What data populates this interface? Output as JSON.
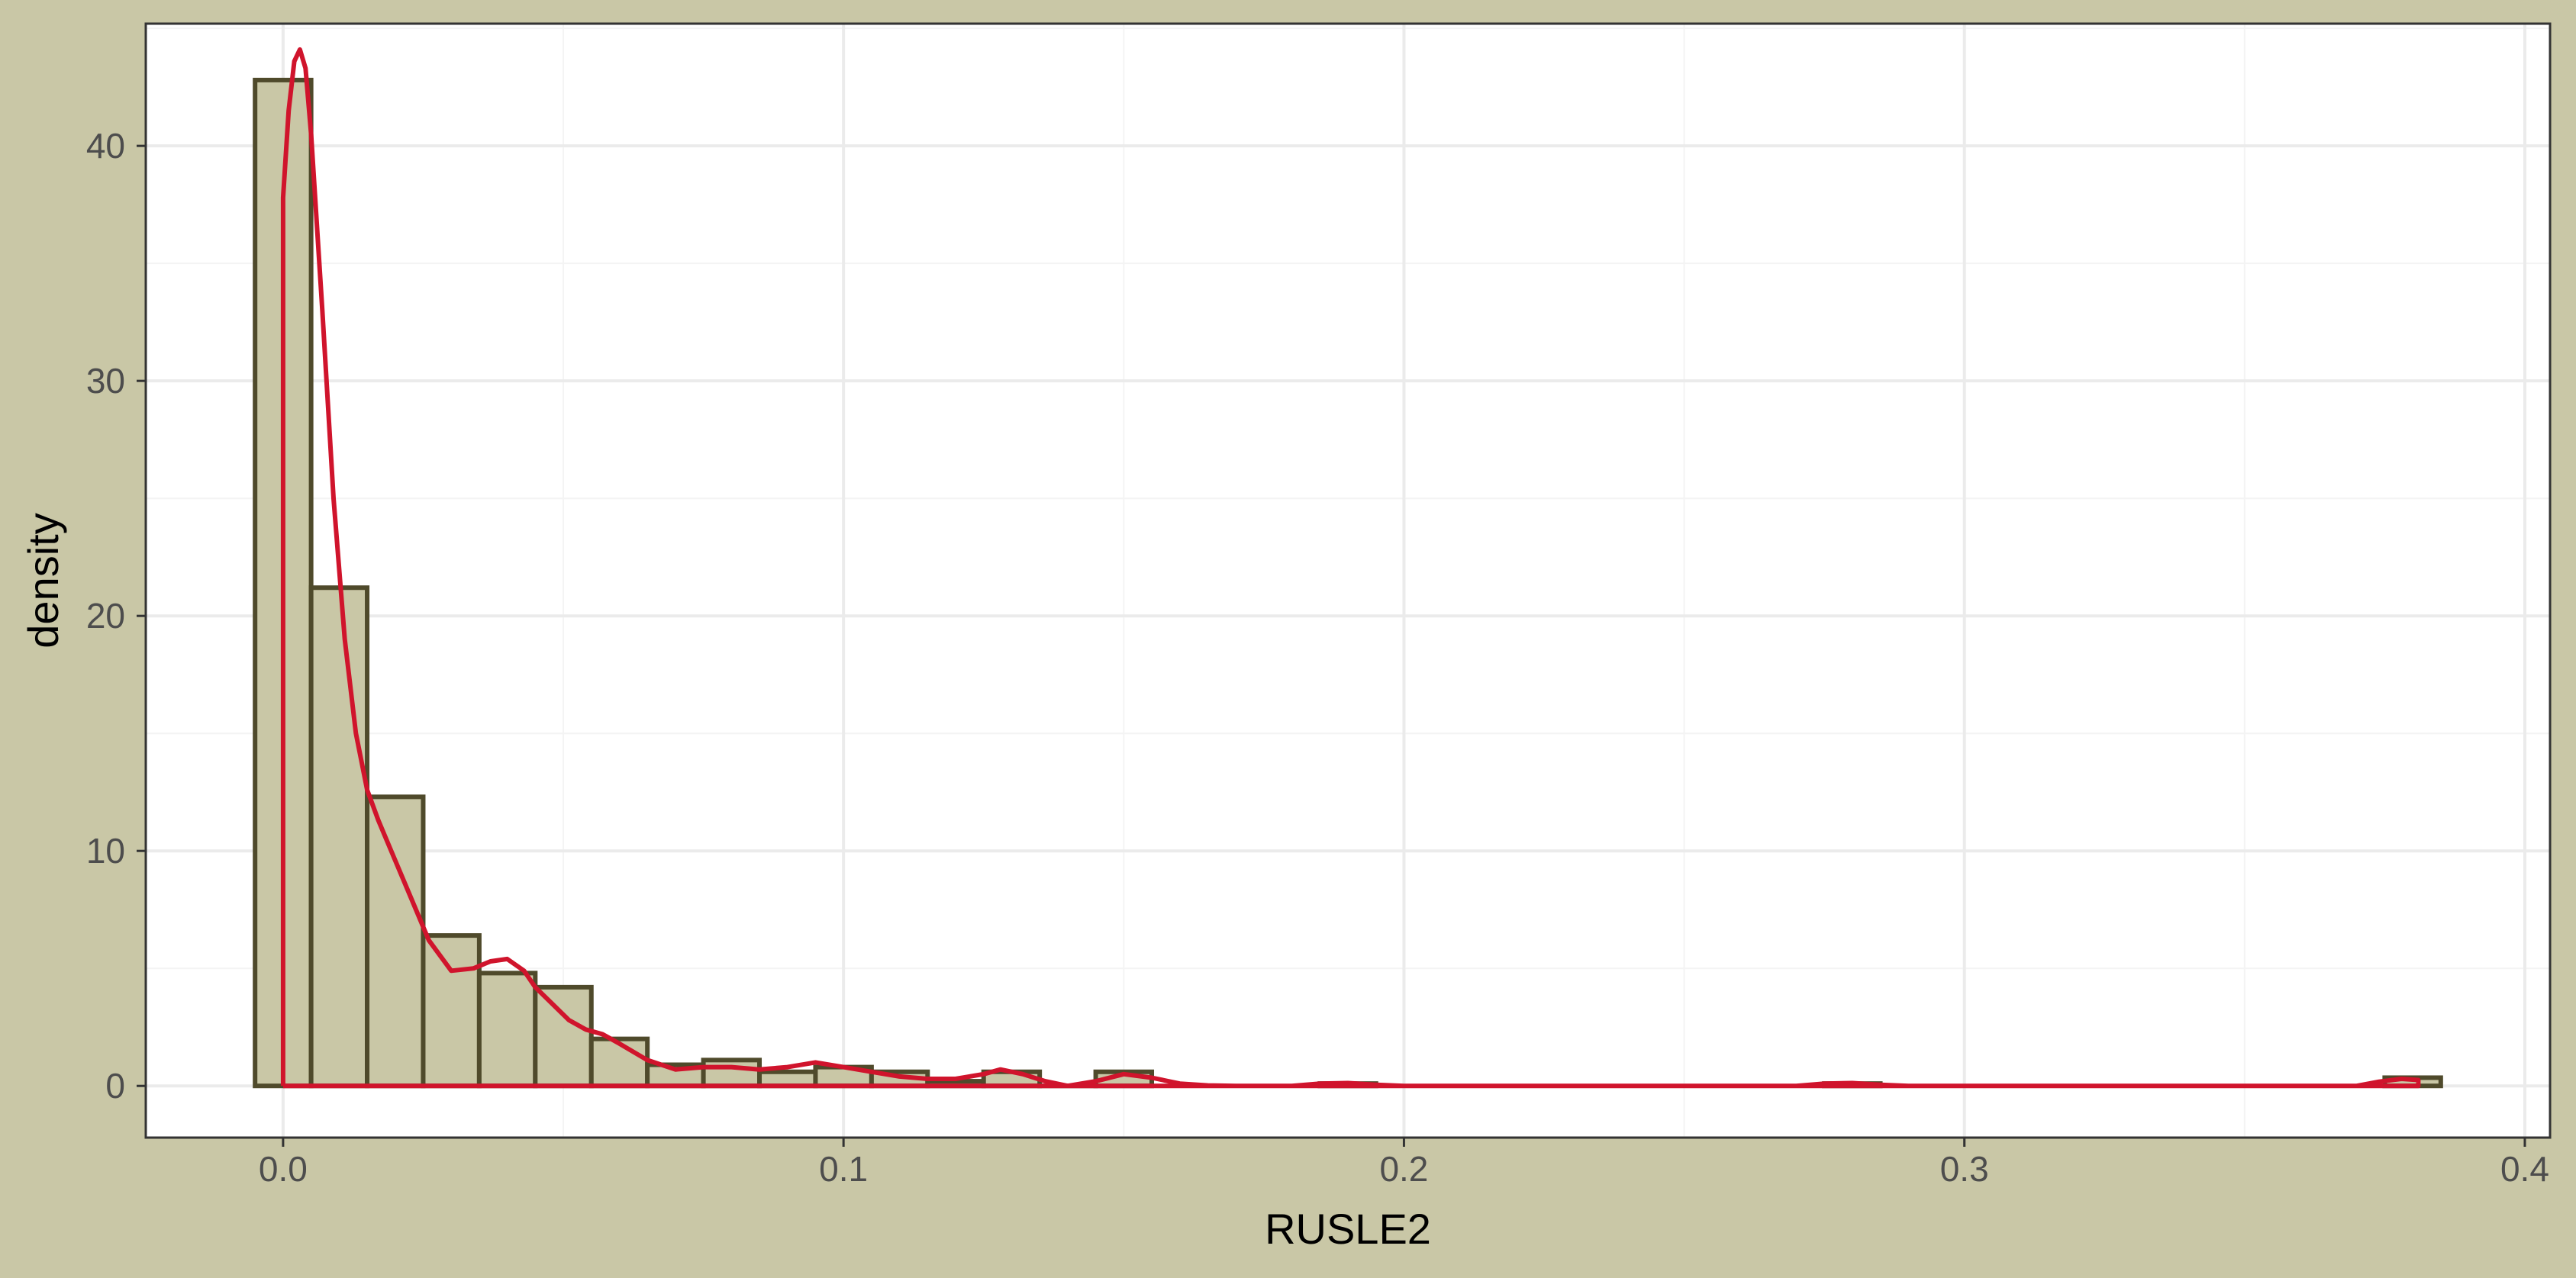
{
  "colors": {
    "background": "#c9c7a6",
    "panel": "#ffffff",
    "grid_major": "#ebebeb",
    "grid_minor": "#f4f4f4",
    "bar_fill": "#c9c7a6",
    "bar_outline": "#4f4a2b",
    "density_line": "#d0142c",
    "border": "#333333"
  },
  "chart_data": {
    "type": "bar",
    "subtype": "histogram-with-density",
    "title": "",
    "xlabel": "RUSLE2",
    "ylabel": "density",
    "xlim": [
      -0.0245,
      0.4045
    ],
    "ylim": [
      -2.2,
      45.2
    ],
    "x_ticks": [
      0.0,
      0.1,
      0.2,
      0.3,
      0.4
    ],
    "x_tick_labels": [
      "0.0",
      "0.1",
      "0.2",
      "0.3",
      "0.4"
    ],
    "y_ticks": [
      0,
      10,
      20,
      30,
      40
    ],
    "y_tick_labels": [
      "0",
      "10",
      "20",
      "30",
      "40"
    ],
    "grid": true,
    "bin_width": 0.01,
    "bins": [
      {
        "x0": -0.005,
        "x1": 0.005,
        "density": 42.8
      },
      {
        "x0": 0.005,
        "x1": 0.015,
        "density": 21.2
      },
      {
        "x0": 0.015,
        "x1": 0.025,
        "density": 12.3
      },
      {
        "x0": 0.025,
        "x1": 0.035,
        "density": 6.4
      },
      {
        "x0": 0.035,
        "x1": 0.045,
        "density": 4.8
      },
      {
        "x0": 0.045,
        "x1": 0.055,
        "density": 4.2
      },
      {
        "x0": 0.055,
        "x1": 0.065,
        "density": 2.0
      },
      {
        "x0": 0.065,
        "x1": 0.075,
        "density": 0.9
      },
      {
        "x0": 0.075,
        "x1": 0.085,
        "density": 1.1
      },
      {
        "x0": 0.085,
        "x1": 0.095,
        "density": 0.6
      },
      {
        "x0": 0.095,
        "x1": 0.105,
        "density": 0.8
      },
      {
        "x0": 0.105,
        "x1": 0.115,
        "density": 0.6
      },
      {
        "x0": 0.115,
        "x1": 0.125,
        "density": 0.2
      },
      {
        "x0": 0.125,
        "x1": 0.135,
        "density": 0.6
      },
      {
        "x0": 0.135,
        "x1": 0.145,
        "density": 0.0
      },
      {
        "x0": 0.145,
        "x1": 0.155,
        "density": 0.6
      },
      {
        "x0": 0.185,
        "x1": 0.195,
        "density": 0.1
      },
      {
        "x0": 0.275,
        "x1": 0.285,
        "density": 0.1
      },
      {
        "x0": 0.375,
        "x1": 0.385,
        "density": 0.35
      }
    ],
    "density_curve": {
      "x": [
        0.0,
        0.0,
        0.001,
        0.002,
        0.003,
        0.004,
        0.005,
        0.007,
        0.009,
        0.011,
        0.013,
        0.015,
        0.017,
        0.02,
        0.023,
        0.026,
        0.03,
        0.034,
        0.037,
        0.04,
        0.043,
        0.045,
        0.048,
        0.051,
        0.054,
        0.057,
        0.06,
        0.065,
        0.07,
        0.075,
        0.08,
        0.085,
        0.09,
        0.095,
        0.1,
        0.105,
        0.11,
        0.115,
        0.12,
        0.125,
        0.128,
        0.132,
        0.136,
        0.14,
        0.145,
        0.15,
        0.155,
        0.16,
        0.165,
        0.17,
        0.18,
        0.185,
        0.19,
        0.195,
        0.2,
        0.27,
        0.275,
        0.28,
        0.285,
        0.29,
        0.37,
        0.374,
        0.378,
        0.381,
        0.381,
        0.0
      ],
      "y": [
        0.0,
        37.8,
        41.5,
        43.6,
        44.1,
        43.3,
        40.5,
        33.0,
        25.0,
        19.0,
        15.0,
        12.6,
        11.3,
        9.6,
        7.9,
        6.2,
        4.9,
        5.0,
        5.3,
        5.4,
        4.9,
        4.2,
        3.5,
        2.8,
        2.4,
        2.2,
        1.8,
        1.1,
        0.7,
        0.8,
        0.8,
        0.7,
        0.8,
        1.0,
        0.8,
        0.6,
        0.4,
        0.3,
        0.3,
        0.5,
        0.7,
        0.5,
        0.2,
        0.0,
        0.2,
        0.5,
        0.35,
        0.1,
        0.02,
        0.0,
        0.0,
        0.1,
        0.12,
        0.05,
        0.0,
        0.0,
        0.1,
        0.12,
        0.05,
        0.0,
        0.0,
        0.18,
        0.3,
        0.25,
        0.0,
        0.0
      ]
    }
  }
}
